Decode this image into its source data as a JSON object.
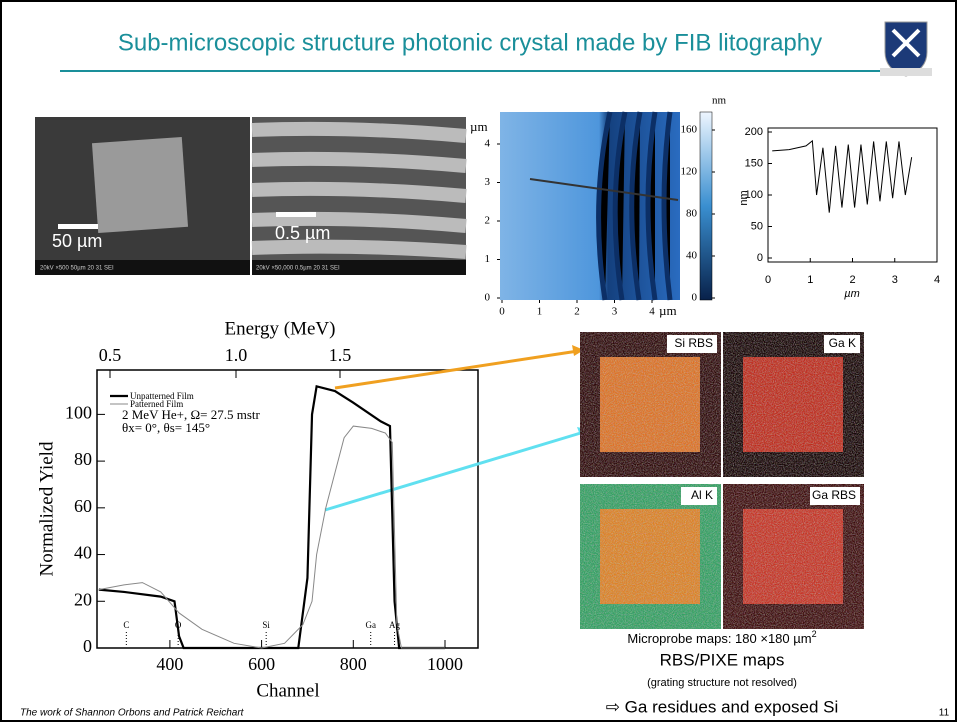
{
  "title": "Sub-microscopic structure photonic crystal made by FIB litography",
  "sem_images": [
    {
      "scale_label": "50 µm",
      "info": "20kV  ×500  50µm     20 31 SEI"
    },
    {
      "scale_label": "0.5 µm",
      "info": "20kV  ×50,000  0.5µm   20 31 SEI"
    }
  ],
  "afm": {
    "unit": "µm",
    "yticks": [
      0,
      1,
      2,
      3,
      4
    ],
    "xticks": [
      0,
      1,
      2,
      3,
      4
    ],
    "colorbar_unit": "nm",
    "colorbar_ticks": [
      0,
      40,
      80,
      120,
      160
    ]
  },
  "profile": {
    "type": "line",
    "y_label": "nm",
    "x_label": "µm",
    "ylim": [
      0,
      200
    ],
    "xlim": [
      0,
      4
    ],
    "yticks": [
      0,
      50,
      100,
      150,
      200
    ],
    "xticks": [
      0,
      1,
      2,
      3,
      4
    ],
    "x": [
      0.1,
      0.5,
      0.9,
      1.05,
      1.15,
      1.3,
      1.45,
      1.6,
      1.75,
      1.9,
      2.05,
      2.2,
      2.35,
      2.5,
      2.65,
      2.8,
      2.95,
      3.1,
      3.25,
      3.4
    ],
    "values": [
      170,
      172,
      178,
      186,
      100,
      175,
      72,
      178,
      80,
      180,
      80,
      180,
      85,
      185,
      90,
      185,
      95,
      185,
      100,
      160
    ]
  },
  "rbs": {
    "type": "line",
    "top_label": "Energy (MeV)",
    "top_ticks": [
      0.5,
      {
        "value": 1,
        "label": "1.0"
      },
      1.5
    ],
    "x_label": "Channel",
    "y_label": "Normalized Yield",
    "xlim": [
      241,
      1072
    ],
    "ylim": [
      0,
      119
    ],
    "xticks": [
      400,
      600,
      800,
      1000
    ],
    "yticks": [
      0,
      20,
      40,
      60,
      80,
      100
    ],
    "legend_notes": [
      "2 MeV He+, Ω= 27.5 mstr",
      "θx= 0°, θs= 145°"
    ],
    "series": [
      {
        "name": "Unpatterned Film",
        "color": "#000000",
        "x": [
          245,
          300,
          380,
          410,
          420,
          430,
          680,
          700,
          710,
          720,
          760,
          800,
          860,
          880,
          890,
          900,
          1000
        ],
        "values": [
          25,
          24,
          22,
          20,
          5,
          0,
          0,
          30,
          100,
          112,
          110,
          105,
          97,
          95,
          20,
          0,
          0
        ]
      },
      {
        "name": "Patterned Film",
        "color": "#888888",
        "x": [
          245,
          300,
          340,
          380,
          420,
          470,
          540,
          600,
          650,
          690,
          710,
          720,
          740,
          760,
          780,
          800,
          840,
          870,
          885,
          895,
          905,
          1000
        ],
        "values": [
          25,
          27,
          28,
          24,
          15,
          8,
          2,
          0,
          2,
          10,
          20,
          40,
          60,
          75,
          90,
          95,
          94,
          92,
          88,
          10,
          0,
          0
        ]
      }
    ],
    "elements": [
      {
        "label": "C",
        "channel": 305
      },
      {
        "label": "O",
        "channel": 418
      },
      {
        "label": "Si",
        "channel": 610
      },
      {
        "label": "Ga",
        "channel": 838
      },
      {
        "label": "Ag",
        "channel": 890
      }
    ]
  },
  "maps": [
    "Si RBS",
    "Ga K",
    "Al K",
    "Ga RBS"
  ],
  "captions": {
    "maps_size": "Microprobe maps: 180 ×180 µm",
    "maps_size_sup": "2",
    "heading": "RBS/PIXE maps",
    "note": "(grating structure not resolved)",
    "conclusion": "⇨ Ga residues and exposed Si"
  },
  "footer": "The work of Shannon Orbons and Patrick Reichart",
  "page_number": "11"
}
